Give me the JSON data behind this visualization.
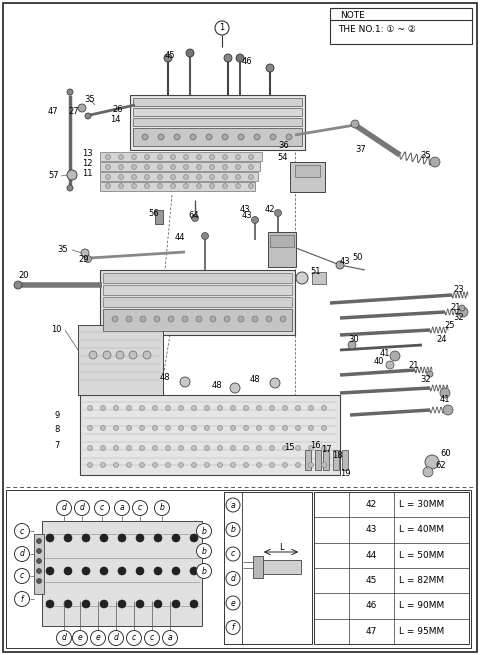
{
  "bg_color": "#ffffff",
  "note_text": "NOTE",
  "note_subtext": "THE NO.1: ① ~ ②",
  "table_data": [
    [
      "42",
      "L = 30MM"
    ],
    [
      "43",
      "L = 40MM"
    ],
    [
      "44",
      "L = 50MM"
    ],
    [
      "45",
      "L = 82MM"
    ],
    [
      "46",
      "L = 90MM"
    ],
    [
      "47",
      "L = 95MM"
    ]
  ],
  "legend_labels": [
    "a",
    "b",
    "c",
    "d",
    "e",
    "f"
  ],
  "line_color": "#333333",
  "light_gray": "#cccccc",
  "mid_gray": "#999999",
  "dark_gray": "#555555"
}
